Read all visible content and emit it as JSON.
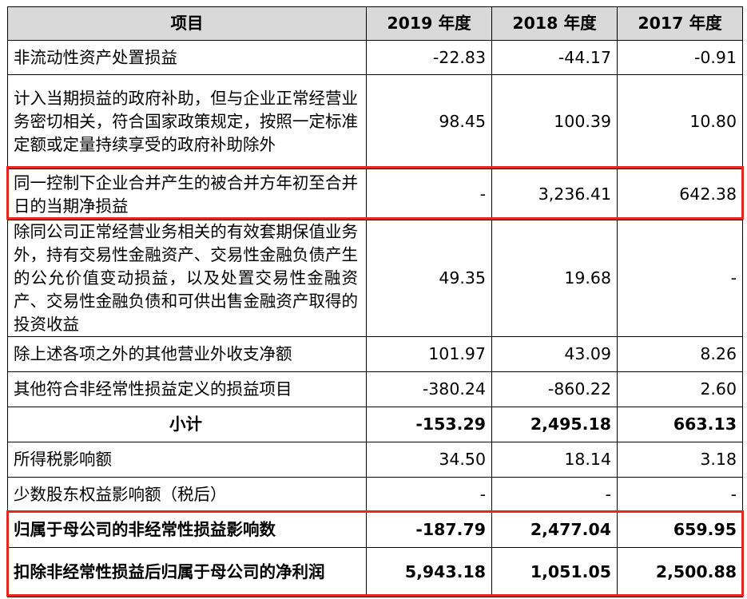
{
  "table": {
    "headers": [
      "项目",
      "2019 年度",
      "2018 年度",
      "2017 年度"
    ],
    "rows": [
      {
        "item": "非流动性资产处置损益",
        "y2019": "-22.83",
        "y2018": "-44.17",
        "y2017": "-0.91"
      },
      {
        "item": "计入当期损益的政府补助，但与企业正常经营业务密切相关，符合国家政策规定，按照一定标准定额或定量持续享受的政府补助除外",
        "y2019": "98.45",
        "y2018": "100.39",
        "y2017": "10.80"
      },
      {
        "item": "同一控制下企业合并产生的被合并方年初至合并日的当期净损益",
        "y2019": "-",
        "y2018": "3,236.41",
        "y2017": "642.38"
      },
      {
        "item": "除同公司正常经营业务相关的有效套期保值业务外，持有交易性金融资产、交易性金融负债产生的公允价值变动损益，以及处置交易性金融资产、交易性金融负债和可供出售金融资产取得的投资收益",
        "y2019": "49.35",
        "y2018": "19.68",
        "y2017": "-"
      },
      {
        "item": "除上述各项之外的其他营业外收支净额",
        "y2019": "101.97",
        "y2018": "43.09",
        "y2017": "8.26"
      },
      {
        "item": "其他符合非经常性损益定义的损益项目",
        "y2019": "-380.24",
        "y2018": "-860.22",
        "y2017": "2.60"
      },
      {
        "item": "小计",
        "y2019": "-153.29",
        "y2018": "2,495.18",
        "y2017": "663.13"
      },
      {
        "item": "所得税影响额",
        "y2019": "34.50",
        "y2018": "18.14",
        "y2017": "3.18"
      },
      {
        "item": "少数股东权益影响额（税后）",
        "y2019": "-",
        "y2018": "-",
        "y2017": "-"
      },
      {
        "item": "归属于母公司的非经常性损益影响数",
        "y2019": "-187.79",
        "y2018": "2,477.04",
        "y2017": "659.95"
      },
      {
        "item": "扣除非经常性损益后归属于母公司的净利润",
        "y2019": "5,943.18",
        "y2018": "1,051.05",
        "y2017": "2,500.88"
      }
    ]
  },
  "highlight_color": "#e8261f",
  "header_background": "#d9d9d9"
}
